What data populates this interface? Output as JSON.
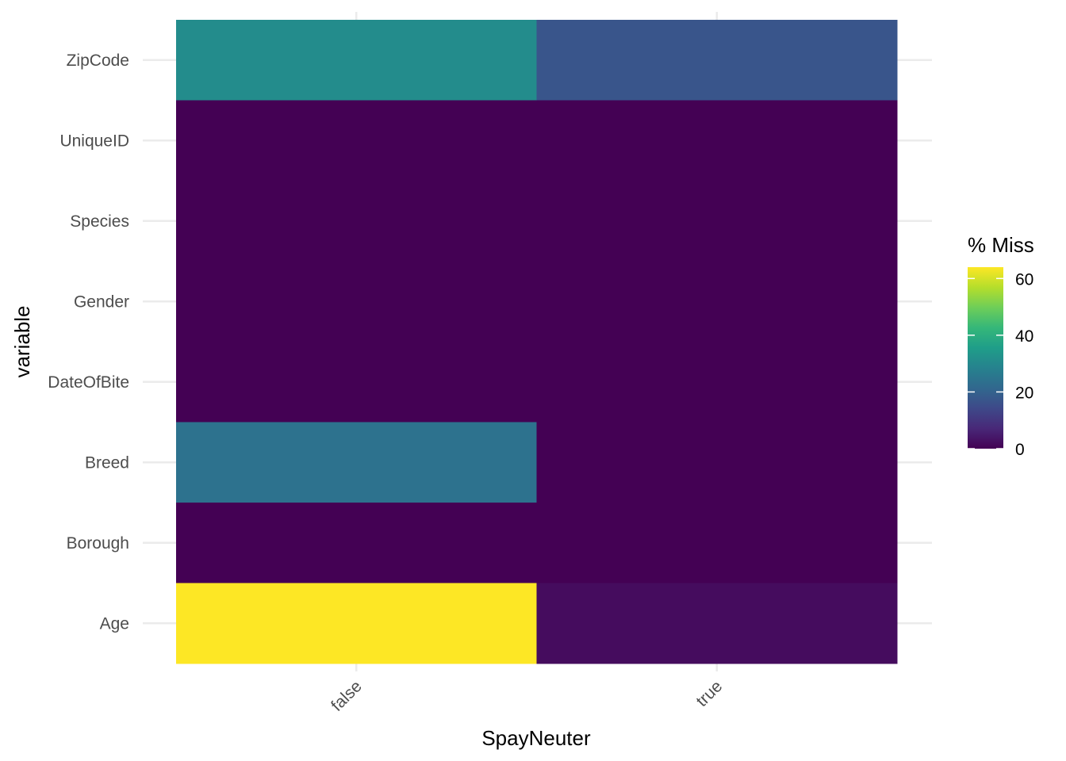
{
  "chart_data": {
    "type": "heatmap",
    "xlabel": "SpayNeuter",
    "ylabel": "variable",
    "x_categories": [
      "false",
      "true"
    ],
    "y_categories": [
      "ZipCode",
      "UniqueID",
      "Species",
      "Gender",
      "DateOfBite",
      "Breed",
      "Borough",
      "Age"
    ],
    "values": [
      [
        31,
        17
      ],
      [
        0,
        0
      ],
      [
        0,
        0
      ],
      [
        0,
        0
      ],
      [
        0,
        0
      ],
      [
        24,
        0
      ],
      [
        0,
        0
      ],
      [
        64,
        2
      ]
    ],
    "legend": {
      "title": "% Miss",
      "ticks": [
        0,
        20,
        40,
        60
      ],
      "range": [
        0,
        64
      ],
      "colormap": "viridis",
      "position": "right"
    },
    "grid": true
  }
}
